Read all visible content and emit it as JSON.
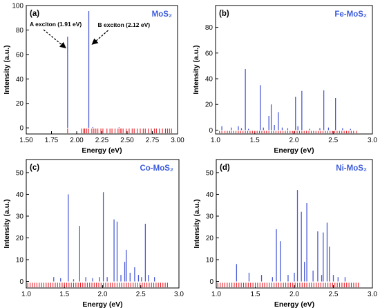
{
  "colors": {
    "stick": "#4a5ad6",
    "rug": "#e8202a",
    "title": "#3b5bdb",
    "axis": "#000000"
  },
  "chart_data": [
    {
      "type": "bar",
      "label": "(a)",
      "title": "MoS₂",
      "xlabel": "Energy (eV)",
      "ylabel": "Intensity (a.u.)",
      "xlim": [
        1.5,
        3.0
      ],
      "ylim": [
        -5,
        100
      ],
      "xticks": [
        "1.50",
        "1.75",
        "2.00",
        "2.25",
        "2.50",
        "2.75",
        "3.00"
      ],
      "yticks": [
        "0",
        "20",
        "40",
        "60",
        "80",
        "100"
      ],
      "series": [
        {
          "points": [
            [
              1.91,
              74.5
            ],
            [
              2.12,
              95.5
            ],
            [
              2.16,
              0.7
            ],
            [
              2.42,
              0.5
            ]
          ]
        }
      ],
      "rug": [
        1.91,
        2.05,
        2.07,
        2.08,
        2.1,
        2.12,
        2.15,
        2.17,
        2.19,
        2.21,
        2.24,
        2.26,
        2.3,
        2.33,
        2.35,
        2.38,
        2.41,
        2.43,
        2.44,
        2.46,
        2.49,
        2.52,
        2.55,
        2.57,
        2.6,
        2.63,
        2.66,
        2.68,
        2.71,
        2.74,
        2.77,
        2.79,
        2.82,
        2.85,
        2.88,
        2.9,
        2.92,
        2.94
      ],
      "annotations": [
        {
          "text": "A exciton (1.91 eV)",
          "x": 1.91,
          "y": 74.5
        },
        {
          "text": "B exciton (2.12 eV)",
          "x": 2.12,
          "y": 95.5
        }
      ]
    },
    {
      "type": "bar",
      "label": "(b)",
      "title": "Fe-MoS₂",
      "xlabel": "Energy (eV)",
      "ylabel": "Intensity (a.u.)",
      "xlim": [
        1.0,
        3.0
      ],
      "ylim": [
        -3,
        97
      ],
      "xticks": [
        "1.0",
        "1.5",
        "2.0",
        "2.5",
        "3.0"
      ],
      "yticks": [
        "0",
        "20",
        "40",
        "60",
        "80"
      ],
      "series": [
        {
          "points": [
            [
              1.08,
              3
            ],
            [
              1.2,
              2
            ],
            [
              1.29,
              3
            ],
            [
              1.33,
              1.5
            ],
            [
              1.38,
              47.5
            ],
            [
              1.42,
              1
            ],
            [
              1.57,
              35
            ],
            [
              1.61,
              2
            ],
            [
              1.68,
              11
            ],
            [
              1.71,
              20
            ],
            [
              1.75,
              4
            ],
            [
              1.8,
              14
            ],
            [
              1.85,
              2
            ],
            [
              1.92,
              1.5
            ],
            [
              2.02,
              26
            ],
            [
              2.05,
              3
            ],
            [
              2.1,
              30.5
            ],
            [
              2.2,
              1
            ],
            [
              2.33,
              1.5
            ],
            [
              2.38,
              31
            ],
            [
              2.44,
              2
            ],
            [
              2.53,
              25
            ],
            [
              2.62,
              1.5
            ],
            [
              2.72,
              1
            ]
          ]
        }
      ],
      "rug": [
        1.05,
        1.08,
        1.12,
        1.15,
        1.18,
        1.2,
        1.23,
        1.26,
        1.29,
        1.32,
        1.35,
        1.38,
        1.41,
        1.44,
        1.47,
        1.5,
        1.53,
        1.56,
        1.59,
        1.62,
        1.65,
        1.68,
        1.71,
        1.74,
        1.77,
        1.8,
        1.83,
        1.86,
        1.89,
        1.92,
        1.95,
        1.98,
        2.01,
        2.04,
        2.07,
        2.1,
        2.13,
        2.16,
        2.19,
        2.22,
        2.25,
        2.28,
        2.31,
        2.34,
        2.37,
        2.4,
        2.43,
        2.46,
        2.49,
        2.52,
        2.55,
        2.58,
        2.61,
        2.64,
        2.67,
        2.7,
        2.73,
        2.76,
        2.8
      ]
    },
    {
      "type": "bar",
      "label": "(c)",
      "title": "Co-MoS₂",
      "xlabel": "Energy (eV)",
      "ylabel": "Intensity (a.u.)",
      "xlim": [
        1.0,
        3.0
      ],
      "ylim": [
        -3,
        56
      ],
      "xticks": [
        "1.0",
        "1.5",
        "2.0",
        "2.5",
        "3.0"
      ],
      "yticks": [
        "0",
        "10",
        "20",
        "30",
        "40",
        "50"
      ],
      "series": [
        {
          "points": [
            [
              1.36,
              2
            ],
            [
              1.45,
              1.5
            ],
            [
              1.55,
              40
            ],
            [
              1.62,
              1
            ],
            [
              1.7,
              25.5
            ],
            [
              1.78,
              2
            ],
            [
              1.87,
              1.5
            ],
            [
              1.96,
              2
            ],
            [
              2.01,
              41
            ],
            [
              2.06,
              2
            ],
            [
              2.15,
              28.5
            ],
            [
              2.19,
              27.5
            ],
            [
              2.24,
              3
            ],
            [
              2.29,
              9
            ],
            [
              2.31,
              14.5
            ],
            [
              2.36,
              4
            ],
            [
              2.42,
              6.5
            ],
            [
              2.47,
              3
            ],
            [
              2.51,
              2
            ],
            [
              2.56,
              26.5
            ],
            [
              2.6,
              3
            ],
            [
              2.68,
              2
            ]
          ]
        }
      ],
      "rug": [
        1.02,
        1.05,
        1.08,
        1.11,
        1.14,
        1.17,
        1.2,
        1.23,
        1.26,
        1.29,
        1.32,
        1.35,
        1.38,
        1.41,
        1.44,
        1.47,
        1.5,
        1.53,
        1.56,
        1.59,
        1.62,
        1.65,
        1.68,
        1.71,
        1.74,
        1.77,
        1.8,
        1.83,
        1.86,
        1.89,
        1.92,
        1.95,
        1.98,
        2.01,
        2.04,
        2.07,
        2.1,
        2.13,
        2.16,
        2.19,
        2.22,
        2.25,
        2.28,
        2.31,
        2.34,
        2.37,
        2.4,
        2.43,
        2.46,
        2.49,
        2.52,
        2.55,
        2.58,
        2.61,
        2.64,
        2.67,
        2.7,
        2.73,
        2.76,
        2.79,
        2.82,
        2.85
      ]
    },
    {
      "type": "bar",
      "label": "(d)",
      "title": "Ni-MoS₂",
      "xlabel": "Energy (eV)",
      "ylabel": "Intensity (a.u.)",
      "xlim": [
        1.0,
        3.0
      ],
      "ylim": [
        -3,
        56
      ],
      "xticks": [
        "1.0",
        "1.5",
        "2.0",
        "2.5",
        "3.0"
      ],
      "yticks": [
        "0",
        "10",
        "20",
        "30",
        "40",
        "50"
      ],
      "series": [
        {
          "points": [
            [
              1.26,
              8
            ],
            [
              1.42,
              4
            ],
            [
              1.58,
              3
            ],
            [
              1.72,
              2
            ],
            [
              1.77,
              24
            ],
            [
              1.82,
              18.5
            ],
            [
              1.92,
              3
            ],
            [
              2.0,
              4
            ],
            [
              2.04,
              42
            ],
            [
              2.09,
              32
            ],
            [
              2.13,
              9
            ],
            [
              2.16,
              36
            ],
            [
              2.24,
              5
            ],
            [
              2.3,
              23
            ],
            [
              2.35,
              3
            ],
            [
              2.37,
              22.5
            ],
            [
              2.42,
              27
            ],
            [
              2.45,
              16
            ],
            [
              2.5,
              3
            ],
            [
              2.56,
              2
            ],
            [
              2.65,
              2
            ]
          ]
        }
      ],
      "rug": [
        1.02,
        1.05,
        1.08,
        1.11,
        1.14,
        1.17,
        1.2,
        1.23,
        1.26,
        1.29,
        1.32,
        1.35,
        1.38,
        1.41,
        1.44,
        1.47,
        1.5,
        1.53,
        1.56,
        1.59,
        1.62,
        1.65,
        1.68,
        1.71,
        1.74,
        1.77,
        1.8,
        1.83,
        1.86,
        1.89,
        1.92,
        1.95,
        1.98,
        2.01,
        2.04,
        2.07,
        2.1,
        2.13,
        2.16,
        2.19,
        2.22,
        2.25,
        2.28,
        2.31,
        2.34,
        2.37,
        2.4,
        2.43,
        2.46,
        2.49,
        2.52,
        2.55,
        2.58,
        2.61,
        2.64,
        2.67,
        2.7,
        2.73,
        2.76,
        2.79,
        2.82
      ]
    }
  ]
}
